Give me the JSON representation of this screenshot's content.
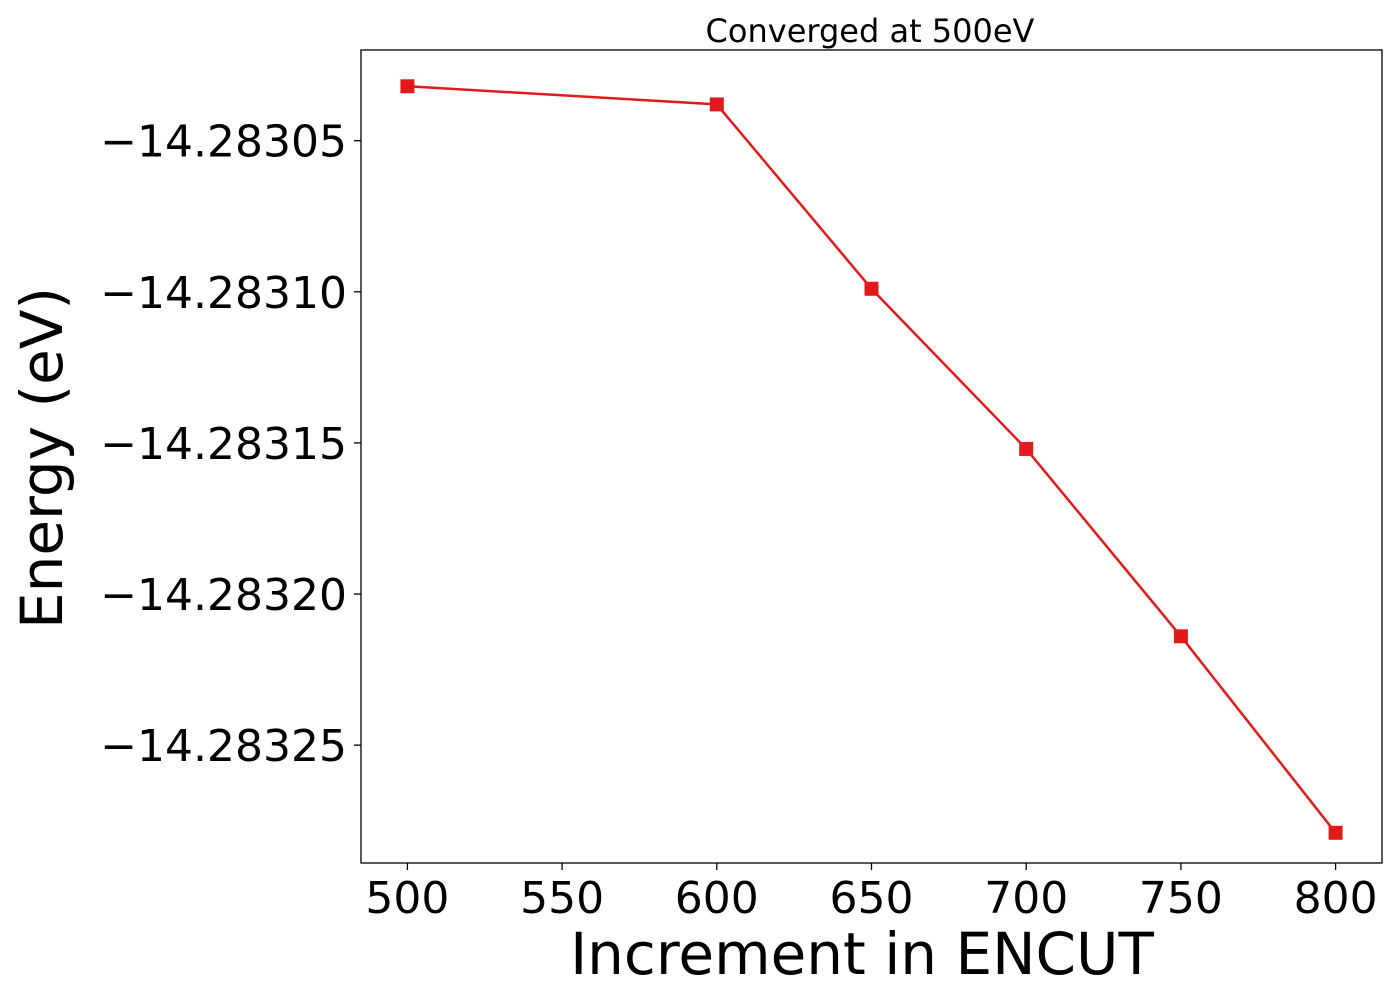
{
  "chart_data": {
    "type": "line",
    "title": "Converged at 500eV",
    "xlabel": "Increment in ENCUT",
    "ylabel": "Energy (eV)",
    "xlim": [
      485,
      815
    ],
    "ylim": [
      -14.283289,
      -14.28302
    ],
    "x_ticks": [
      500,
      550,
      600,
      650,
      700,
      750,
      800
    ],
    "x_tick_labels": [
      "500",
      "550",
      "600",
      "650",
      "700",
      "750",
      "800"
    ],
    "y_ticks": [
      -14.28305,
      -14.2831,
      -14.28315,
      -14.2832,
      -14.28325
    ],
    "y_tick_labels": [
      "−14.28305",
      "−14.28310",
      "−14.28315",
      "−14.28320",
      "−14.28325"
    ],
    "grid": false,
    "series": [
      {
        "color": "#e31a1c",
        "marker": "square",
        "x": [
          500,
          600,
          650,
          700,
          750,
          800
        ],
        "y": [
          -14.283032,
          -14.283038,
          -14.283099,
          -14.283152,
          -14.283214,
          -14.283279
        ]
      }
    ]
  }
}
